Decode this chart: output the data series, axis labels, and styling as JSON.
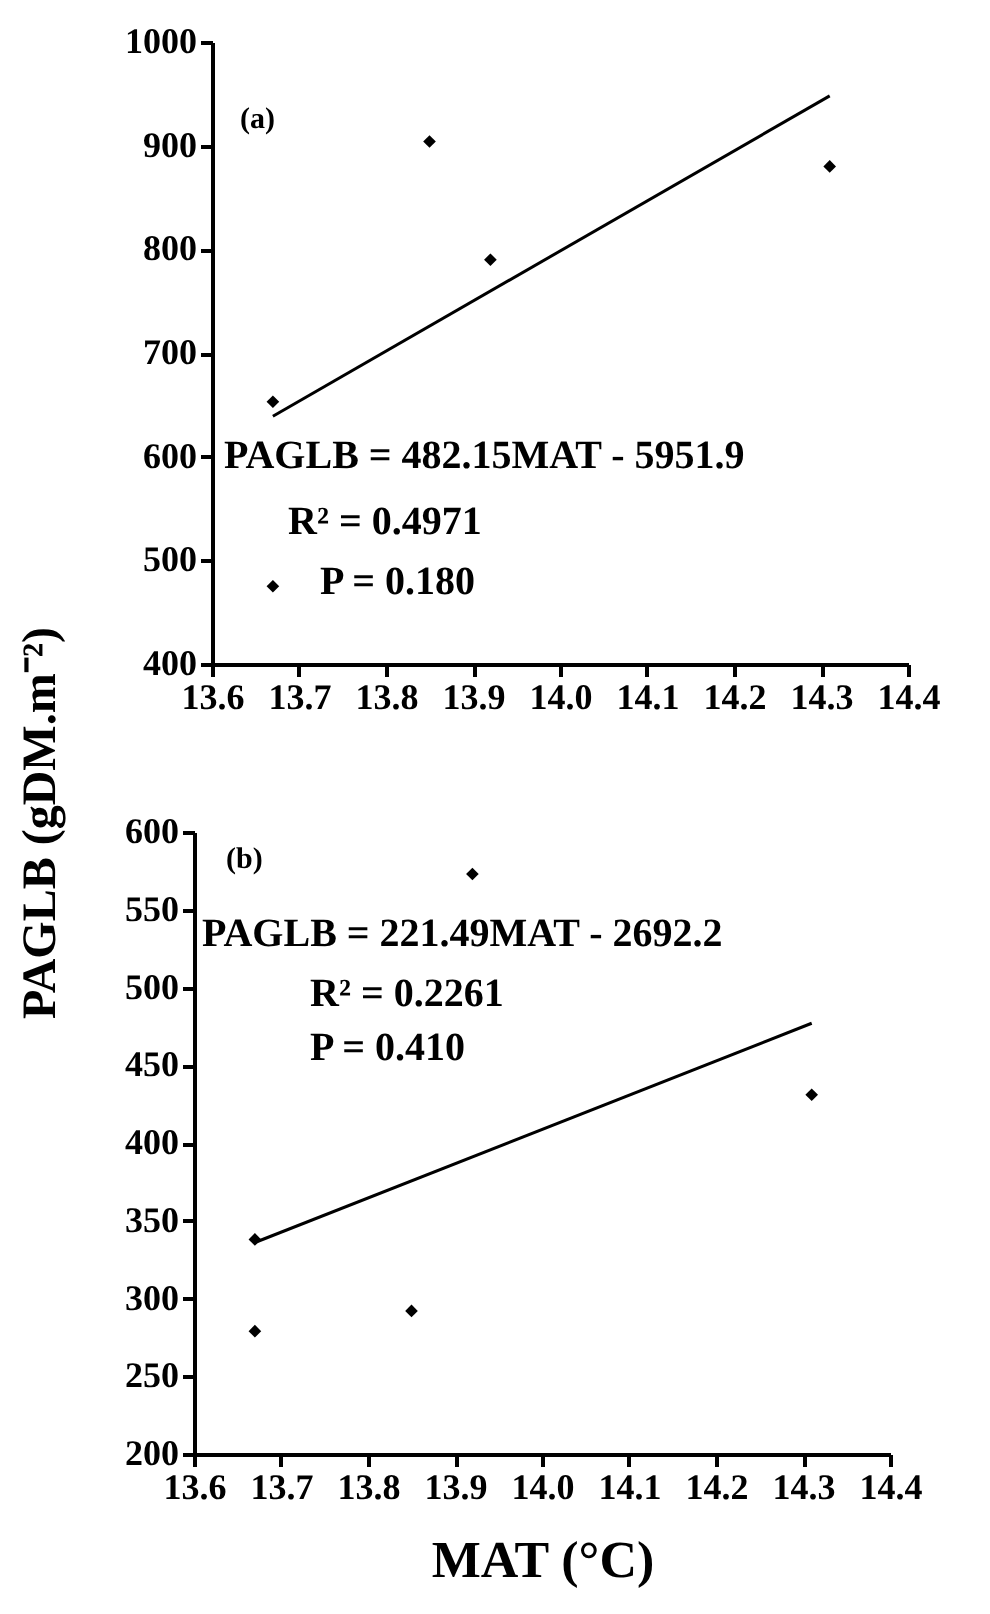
{
  "chart_data": [
    {
      "type": "scatter",
      "ylabel": "PAGLB (gDM.m⁻²)",
      "annotations": [
        "(a)",
        "PAGLB = 482.15MAT - 5951.9",
        "R² = 0.4971",
        "P = 0.180"
      ],
      "series": [
        {
          "color": "#000000",
          "marker": "diamond",
          "x": [
            13.67,
            13.67,
            13.85,
            13.92,
            14.31
          ],
          "values": [
            653,
            475,
            904,
            790,
            880
          ]
        },
        {
          "type": "line",
          "marker": "none",
          "color": "#000000",
          "x": [
            13.67,
            14.31
          ],
          "values": [
            639,
            948
          ]
        }
      ],
      "xlim": [
        13.6,
        14.4
      ],
      "xticks": [
        {
          "value": 13.6,
          "label": "13.6"
        },
        {
          "value": 13.7,
          "label": "13.7"
        },
        {
          "value": 13.8,
          "label": "13.8"
        },
        {
          "value": 13.9,
          "label": "13.9"
        },
        {
          "value": 14,
          "label": "14.0"
        },
        {
          "value": 14.1,
          "label": "14.1"
        },
        {
          "value": 14.2,
          "label": "14.2"
        },
        {
          "value": 14.3,
          "label": "14.3"
        },
        {
          "value": 14.4,
          "label": "14.4"
        }
      ],
      "ylim": [
        400,
        1000
      ],
      "yticks": [
        400,
        500,
        600,
        700,
        800,
        900,
        1000
      ],
      "grid": false
    },
    {
      "type": "scatter",
      "xlabel": "MAT (°C)",
      "annotations": [
        "(b)",
        "PAGLB = 221.49MAT - 2692.2",
        "R² = 0.2261",
        "P = 0.410"
      ],
      "series": [
        {
          "color": "#000000",
          "marker": "diamond",
          "x": [
            13.67,
            13.67,
            13.85,
            13.92,
            14.31
          ],
          "values": [
            338,
            279,
            292,
            573,
            431
          ]
        },
        {
          "type": "line",
          "marker": "none",
          "color": "#000000",
          "x": [
            13.67,
            14.31
          ],
          "values": [
            336,
            477
          ]
        }
      ],
      "xlim": [
        13.6,
        14.4
      ],
      "xticks": [
        {
          "value": 13.6,
          "label": "13.6"
        },
        {
          "value": 13.7,
          "label": "13.7"
        },
        {
          "value": 13.8,
          "label": "13.8"
        },
        {
          "value": 13.9,
          "label": "13.9"
        },
        {
          "value": 14,
          "label": "14.0"
        },
        {
          "value": 14.1,
          "label": "14.1"
        },
        {
          "value": 14.2,
          "label": "14.2"
        },
        {
          "value": 14.3,
          "label": "14.3"
        },
        {
          "value": 14.4,
          "label": "14.4"
        }
      ],
      "ylim": [
        200,
        600
      ],
      "yticks": [
        200,
        250,
        300,
        350,
        400,
        450,
        500,
        550,
        600
      ],
      "grid": false
    }
  ]
}
